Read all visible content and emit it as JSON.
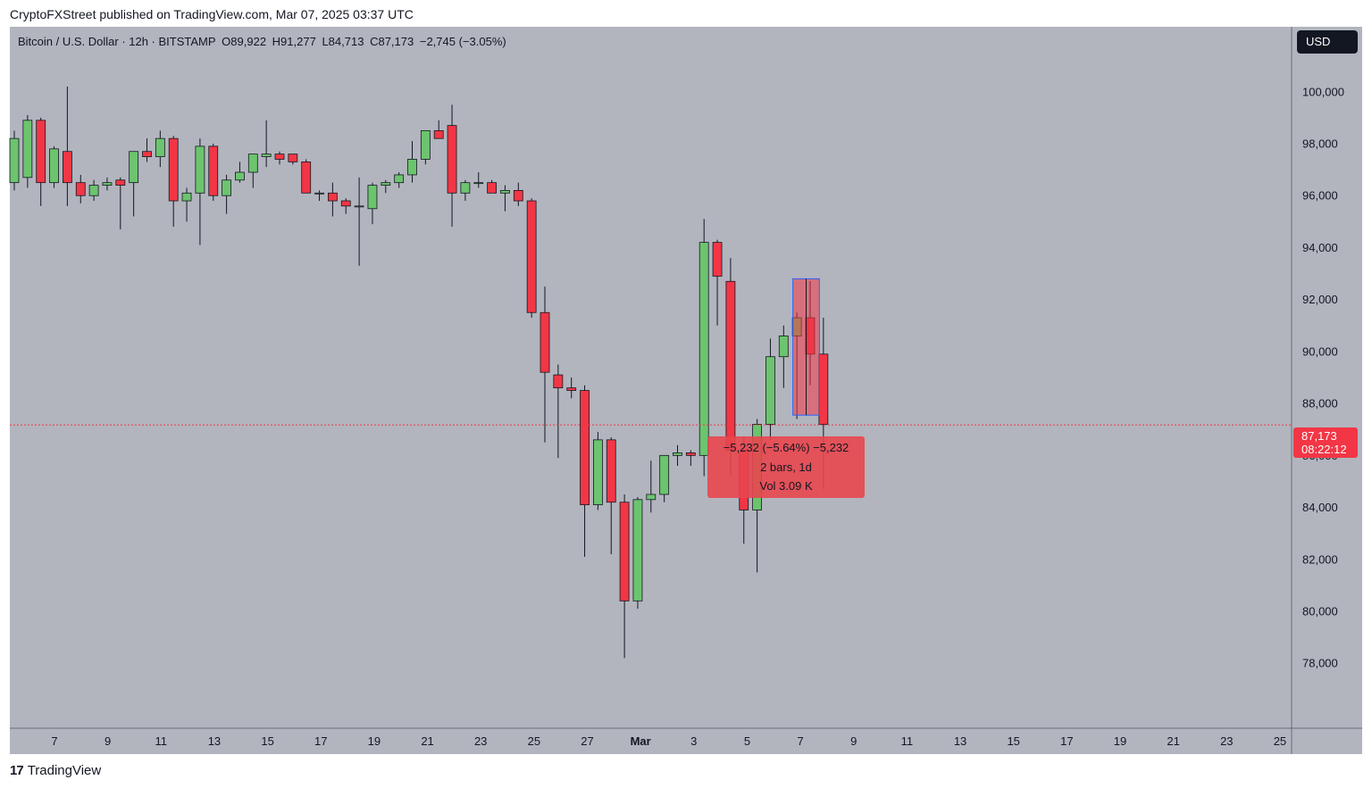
{
  "header": {
    "publisher": "CryptoFXStreet published on TradingView.com, Mar 07, 2025 03:37 UTC"
  },
  "legend": {
    "symbol": "Bitcoin / U.S. Dollar · 12h · BITSTAMP",
    "open": "O89,922",
    "high": "H91,277",
    "low": "L84,713",
    "close": "C87,173",
    "change": "−2,745 (−3.05%)"
  },
  "currency_badge": "USD",
  "last_price": {
    "value": "87,173",
    "countdown": "08:22:12"
  },
  "measure": {
    "line1": "−5,232 (−5.64%) −5,232",
    "line2": "2 bars, 1d",
    "line3": "Vol 3.09 K"
  },
  "footer": {
    "logo_mark": "17",
    "brand": "TradingView"
  },
  "colors": {
    "background": "#b2b5be",
    "up": "#6cc46e",
    "down": "#f23645",
    "wick": "#131722",
    "last_price_line": "#f23645"
  },
  "chart_data": {
    "type": "candlestick",
    "title": "",
    "xlabel": "",
    "ylabel": "",
    "ylim": [
      75500,
      102500
    ],
    "y_ticks": [
      "100,000",
      "98,000",
      "96,000",
      "94,000",
      "92,000",
      "90,000",
      "88,000",
      "86,000",
      "84,000",
      "82,000",
      "80,000",
      "78,000"
    ],
    "x_ticks": [
      "7",
      "9",
      "11",
      "13",
      "15",
      "17",
      "19",
      "21",
      "23",
      "25",
      "27",
      "Mar",
      "3",
      "5",
      "7",
      "9",
      "11",
      "13",
      "15",
      "17",
      "19",
      "21",
      "23",
      "25"
    ],
    "last_price": 87173,
    "candles": [
      {
        "o": 96500,
        "h": 98500,
        "l": 96200,
        "c": 98200
      },
      {
        "o": 96700,
        "h": 99100,
        "l": 96300,
        "c": 98900
      },
      {
        "o": 98900,
        "h": 99000,
        "l": 95600,
        "c": 96500
      },
      {
        "o": 96500,
        "h": 97900,
        "l": 96300,
        "c": 97800
      },
      {
        "o": 97700,
        "h": 100200,
        "l": 95600,
        "c": 96500
      },
      {
        "o": 96500,
        "h": 96800,
        "l": 95700,
        "c": 96000
      },
      {
        "o": 96000,
        "h": 96600,
        "l": 95800,
        "c": 96400
      },
      {
        "o": 96400,
        "h": 96700,
        "l": 96200,
        "c": 96500
      },
      {
        "o": 96600,
        "h": 96700,
        "l": 94700,
        "c": 96400
      },
      {
        "o": 96500,
        "h": 97500,
        "l": 95200,
        "c": 97700
      },
      {
        "o": 97700,
        "h": 98200,
        "l": 97300,
        "c": 97500
      },
      {
        "o": 97500,
        "h": 98500,
        "l": 97100,
        "c": 98200
      },
      {
        "o": 98200,
        "h": 98300,
        "l": 94800,
        "c": 95800
      },
      {
        "o": 95800,
        "h": 96300,
        "l": 95000,
        "c": 96100
      },
      {
        "o": 96100,
        "h": 98200,
        "l": 94100,
        "c": 97900
      },
      {
        "o": 97900,
        "h": 98000,
        "l": 95800,
        "c": 96000
      },
      {
        "o": 96000,
        "h": 96800,
        "l": 95300,
        "c": 96600
      },
      {
        "o": 96600,
        "h": 97300,
        "l": 96500,
        "c": 96900
      },
      {
        "o": 96900,
        "h": 97600,
        "l": 96300,
        "c": 97600
      },
      {
        "o": 97500,
        "h": 98900,
        "l": 97100,
        "c": 97600
      },
      {
        "o": 97600,
        "h": 97700,
        "l": 97200,
        "c": 97400
      },
      {
        "o": 97600,
        "h": 97500,
        "l": 97200,
        "c": 97300
      },
      {
        "o": 97300,
        "h": 97400,
        "l": 96100,
        "c": 96100
      },
      {
        "o": 96100,
        "h": 96200,
        "l": 95800,
        "c": 96100
      },
      {
        "o": 96100,
        "h": 96500,
        "l": 95200,
        "c": 95800
      },
      {
        "o": 95800,
        "h": 95900,
        "l": 95300,
        "c": 95600
      },
      {
        "o": 95600,
        "h": 96700,
        "l": 93300,
        "c": 95600
      },
      {
        "o": 95500,
        "h": 96500,
        "l": 94900,
        "c": 96400
      },
      {
        "o": 96400,
        "h": 96600,
        "l": 96100,
        "c": 96500
      },
      {
        "o": 96500,
        "h": 96900,
        "l": 96300,
        "c": 96800
      },
      {
        "o": 96800,
        "h": 98100,
        "l": 96500,
        "c": 97400
      },
      {
        "o": 97400,
        "h": 98400,
        "l": 97200,
        "c": 98500
      },
      {
        "o": 98500,
        "h": 98900,
        "l": 98200,
        "c": 98200
      },
      {
        "o": 98700,
        "h": 99500,
        "l": 94800,
        "c": 96100
      },
      {
        "o": 96100,
        "h": 96600,
        "l": 95800,
        "c": 96500
      },
      {
        "o": 96500,
        "h": 96900,
        "l": 96300,
        "c": 96500
      },
      {
        "o": 96500,
        "h": 96600,
        "l": 96100,
        "c": 96100
      },
      {
        "o": 96100,
        "h": 96400,
        "l": 95400,
        "c": 96200
      },
      {
        "o": 96200,
        "h": 96500,
        "l": 95600,
        "c": 95800
      },
      {
        "o": 95800,
        "h": 95900,
        "l": 91300,
        "c": 91500
      },
      {
        "o": 91500,
        "h": 92500,
        "l": 86500,
        "c": 89200
      },
      {
        "o": 89100,
        "h": 89500,
        "l": 85900,
        "c": 88600
      },
      {
        "o": 88600,
        "h": 89000,
        "l": 88200,
        "c": 88500
      },
      {
        "o": 88500,
        "h": 88700,
        "l": 82100,
        "c": 84100
      },
      {
        "o": 84100,
        "h": 86900,
        "l": 83900,
        "c": 86600
      },
      {
        "o": 86600,
        "h": 86700,
        "l": 82200,
        "c": 84200
      },
      {
        "o": 84200,
        "h": 84500,
        "l": 78200,
        "c": 80400
      },
      {
        "o": 80400,
        "h": 84400,
        "l": 80100,
        "c": 84300
      },
      {
        "o": 84300,
        "h": 85800,
        "l": 83800,
        "c": 84500
      },
      {
        "o": 84500,
        "h": 85900,
        "l": 84200,
        "c": 86000
      },
      {
        "o": 86000,
        "h": 86400,
        "l": 85600,
        "c": 86100
      },
      {
        "o": 86100,
        "h": 86200,
        "l": 85600,
        "c": 86000
      },
      {
        "o": 86000,
        "h": 95100,
        "l": 85200,
        "c": 94200
      },
      {
        "o": 94200,
        "h": 94300,
        "l": 91000,
        "c": 92900
      },
      {
        "o": 92700,
        "h": 93600,
        "l": 85200,
        "c": 86200
      },
      {
        "o": 86200,
        "h": 86700,
        "l": 82600,
        "c": 83900
      },
      {
        "o": 83900,
        "h": 87400,
        "l": 81500,
        "c": 87200
      },
      {
        "o": 87200,
        "h": 90500,
        "l": 86600,
        "c": 89800
      },
      {
        "o": 89800,
        "h": 91000,
        "l": 88600,
        "c": 90600
      },
      {
        "o": 90600,
        "h": 91500,
        "l": 87400,
        "c": 91300
      },
      {
        "o": 91300,
        "h": 92700,
        "l": 88700,
        "c": 89900
      },
      {
        "o": 89900,
        "h": 91300,
        "l": 84700,
        "c": 87200
      }
    ],
    "measure_range": {
      "from_price": 92800,
      "to_price": 87550
    }
  }
}
